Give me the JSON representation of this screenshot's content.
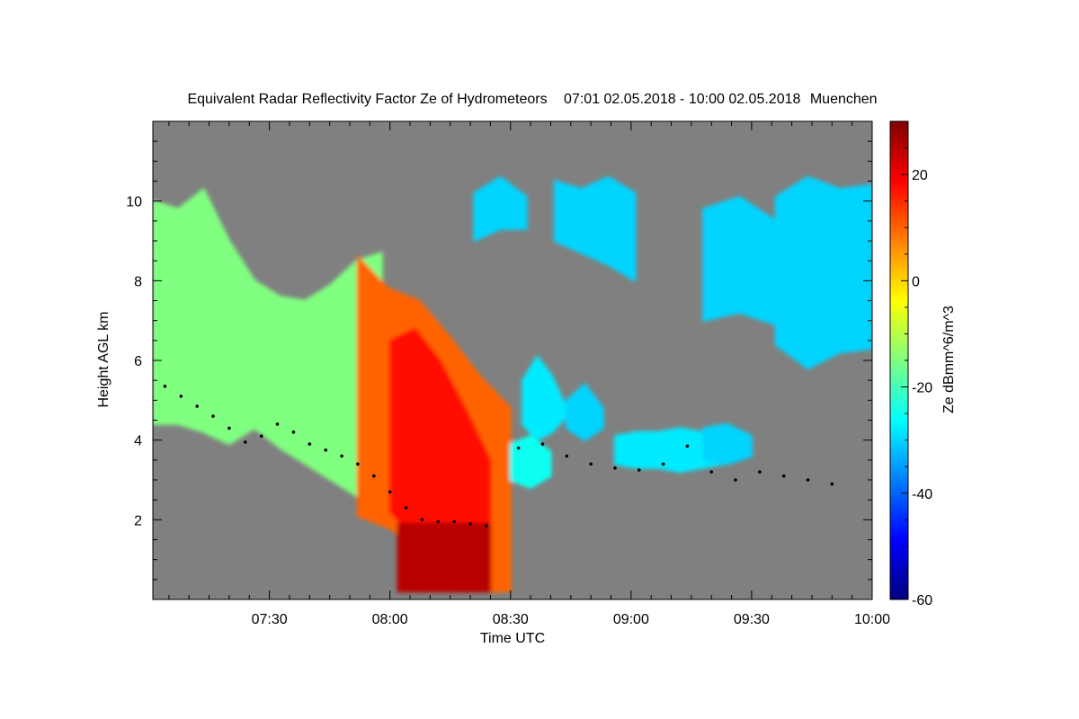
{
  "chart_data": {
    "type": "heatmap",
    "title": "Equivalent Radar Reflectivity Factor Ze of Hydrometeors",
    "period": "07:01 02.05.2018 - 10:00 02.05.2018",
    "location": "Muenchen",
    "xlabel": "Time UTC",
    "ylabel": "Height AGL km",
    "colorbar_label": "Ze dBmm^6/m^3",
    "x_range_minutes": [
      421,
      600
    ],
    "y_range_km": [
      0,
      12
    ],
    "color_range_dbz": [
      -60,
      30
    ],
    "colormap": "jet",
    "background_color": "#808080",
    "x_ticks": [
      {
        "value": 450,
        "label": "07:30"
      },
      {
        "value": 480,
        "label": "08:00"
      },
      {
        "value": 510,
        "label": "08:30"
      },
      {
        "value": 540,
        "label": "09:00"
      },
      {
        "value": 570,
        "label": "09:30"
      },
      {
        "value": 600,
        "label": "10:00"
      }
    ],
    "y_ticks": [
      {
        "value": 2,
        "label": "2"
      },
      {
        "value": 4,
        "label": "4"
      },
      {
        "value": 6,
        "label": "6"
      },
      {
        "value": 8,
        "label": "8"
      },
      {
        "value": 10,
        "label": "10"
      }
    ],
    "colorbar_ticks": [
      {
        "value": 20,
        "label": "20"
      },
      {
        "value": 0,
        "label": "0"
      },
      {
        "value": -20,
        "label": "-20"
      },
      {
        "value": -40,
        "label": "-40"
      },
      {
        "value": -60,
        "label": "-60"
      }
    ],
    "cloud_regions": [
      {
        "x": [
          421,
          478
        ],
        "top": [
          10.0,
          9.8,
          10.3,
          9.0,
          8.0,
          7.6,
          7.5,
          7.9,
          8.5,
          8.7
        ],
        "base": [
          4.4,
          4.4,
          4.2,
          3.9,
          4.3,
          3.8,
          3.4,
          3.0,
          2.6,
          2.3
        ],
        "dbz": -15
      },
      {
        "x": [
          472,
          510
        ],
        "top": [
          8.6,
          7.8,
          7.5,
          6.6,
          5.6,
          4.8
        ],
        "base": [
          2.1,
          1.8,
          1.3,
          0.2,
          0.2,
          0.2
        ],
        "dbz": 10
      },
      {
        "x": [
          480,
          505
        ],
        "top": [
          6.5,
          6.8,
          6.0,
          4.8,
          3.5
        ],
        "base": [
          2.2,
          1.5,
          0.3,
          0.3,
          0.3
        ],
        "dbz": 18
      },
      {
        "x": [
          482,
          505
        ],
        "top": [
          1.9,
          1.9,
          1.9,
          1.9
        ],
        "base": [
          0.2,
          0.2,
          0.2,
          0.2
        ],
        "dbz": 25
      },
      {
        "x": [
          510,
          520
        ],
        "top": [
          3.9,
          4.1,
          3.7
        ],
        "base": [
          3.0,
          2.8,
          3.1
        ],
        "dbz": -25
      },
      {
        "x": [
          513,
          524
        ],
        "top": [
          5.5,
          6.1,
          5.6,
          4.8
        ],
        "base": [
          4.4,
          4.0,
          4.2,
          4.6
        ],
        "dbz": -28
      },
      {
        "x": [
          524,
          533
        ],
        "top": [
          5.0,
          5.4,
          4.8
        ],
        "base": [
          4.3,
          4.0,
          4.3
        ],
        "dbz": -30
      },
      {
        "x": [
          536,
          563
        ],
        "top": [
          4.1,
          4.2,
          4.2,
          4.3,
          4.2,
          4.0
        ],
        "base": [
          3.4,
          3.3,
          3.3,
          3.2,
          3.3,
          3.4
        ],
        "dbz": -28
      },
      {
        "x": [
          558,
          570
        ],
        "top": [
          4.3,
          4.4,
          4.1
        ],
        "base": [
          3.5,
          3.4,
          3.6
        ],
        "dbz": -30
      },
      {
        "x": [
          501,
          514
        ],
        "top": [
          10.2,
          10.6,
          10.1
        ],
        "base": [
          9.0,
          9.3,
          9.3
        ],
        "dbz": -30
      },
      {
        "x": [
          521,
          541
        ],
        "top": [
          10.5,
          10.3,
          10.6,
          10.2
        ],
        "base": [
          9.0,
          8.7,
          8.4,
          8.0
        ],
        "dbz": -30
      },
      {
        "x": [
          558,
          576
        ],
        "top": [
          9.8,
          10.1,
          9.5
        ],
        "base": [
          7.0,
          7.2,
          6.9
        ],
        "dbz": -30
      },
      {
        "x": [
          576,
          600
        ],
        "top": [
          10.1,
          10.6,
          10.3,
          10.4
        ],
        "base": [
          6.4,
          5.8,
          6.2,
          6.3
        ],
        "dbz": -30
      }
    ],
    "cloud_base_points": [
      [
        424,
        5.35
      ],
      [
        428,
        5.1
      ],
      [
        432,
        4.85
      ],
      [
        436,
        4.6
      ],
      [
        440,
        4.3
      ],
      [
        444,
        3.95
      ],
      [
        448,
        4.1
      ],
      [
        452,
        4.4
      ],
      [
        456,
        4.2
      ],
      [
        460,
        3.9
      ],
      [
        464,
        3.75
      ],
      [
        468,
        3.6
      ],
      [
        472,
        3.4
      ],
      [
        476,
        3.1
      ],
      [
        480,
        2.7
      ],
      [
        484,
        2.3
      ],
      [
        488,
        2.0
      ],
      [
        492,
        1.95
      ],
      [
        496,
        1.95
      ],
      [
        500,
        1.9
      ],
      [
        504,
        1.85
      ],
      [
        512,
        3.8
      ],
      [
        518,
        3.9
      ],
      [
        524,
        3.6
      ],
      [
        530,
        3.4
      ],
      [
        536,
        3.3
      ],
      [
        542,
        3.25
      ],
      [
        548,
        3.4
      ],
      [
        554,
        3.85
      ],
      [
        560,
        3.2
      ],
      [
        566,
        3.0
      ],
      [
        572,
        3.2
      ],
      [
        578,
        3.1
      ],
      [
        584,
        3.0
      ],
      [
        590,
        2.9
      ]
    ]
  }
}
